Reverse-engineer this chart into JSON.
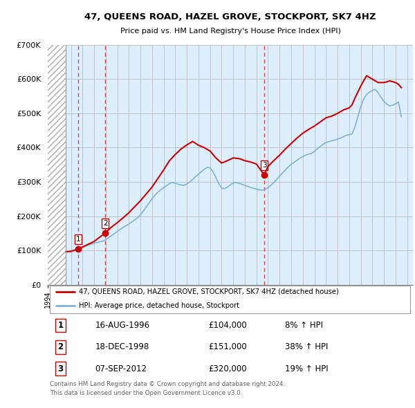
{
  "title": "47, QUEENS ROAD, HAZEL GROVE, STOCKPORT, SK7 4HZ",
  "subtitle": "Price paid vs. HM Land Registry's House Price Index (HPI)",
  "ylim": [
    0,
    700000
  ],
  "yticks": [
    0,
    100000,
    200000,
    300000,
    400000,
    500000,
    600000,
    700000
  ],
  "ytick_labels": [
    "£0",
    "£100K",
    "£200K",
    "£300K",
    "£400K",
    "£500K",
    "£600K",
    "£700K"
  ],
  "xlim_start": 1994.0,
  "xlim_end": 2025.5,
  "hatch_end": 1995.58,
  "transactions": [
    {
      "year": 1996.62,
      "price": 104000,
      "label": "1"
    },
    {
      "year": 1998.96,
      "price": 151000,
      "label": "2"
    },
    {
      "year": 2012.68,
      "price": 320000,
      "label": "3"
    }
  ],
  "transaction_vlines": [
    1996.62,
    1998.96,
    2012.68
  ],
  "hpi_line_color": "#7fb3d3",
  "price_line_color": "#cc0000",
  "transaction_marker_color": "#cc0000",
  "vline_color": "#dd4444",
  "grid_color": "#bbbbbb",
  "chart_bg_color": "#ddeeff",
  "hatch_color": "#cccccc",
  "legend_label_price": "47, QUEENS ROAD, HAZEL GROVE, STOCKPORT, SK7 4HZ (detached house)",
  "legend_label_hpi": "HPI: Average price, detached house, Stockport",
  "table_rows": [
    {
      "num": "1",
      "date": "16-AUG-1996",
      "price": "£104,000",
      "hpi": "8% ↑ HPI"
    },
    {
      "num": "2",
      "date": "18-DEC-1998",
      "price": "£151,000",
      "hpi": "38% ↑ HPI"
    },
    {
      "num": "3",
      "date": "07-SEP-2012",
      "price": "£320,000",
      "hpi": "19% ↑ HPI"
    }
  ],
  "footer": "Contains HM Land Registry data © Crown copyright and database right 2024.\nThis data is licensed under the Open Government Licence v3.0.",
  "hpi_data_x": [
    1995.58,
    1995.75,
    1996.0,
    1996.25,
    1996.5,
    1996.75,
    1997.0,
    1997.25,
    1997.5,
    1997.75,
    1998.0,
    1998.25,
    1998.5,
    1998.75,
    1999.0,
    1999.25,
    1999.5,
    1999.75,
    2000.0,
    2000.25,
    2000.5,
    2000.75,
    2001.0,
    2001.25,
    2001.5,
    2001.75,
    2002.0,
    2002.25,
    2002.5,
    2002.75,
    2003.0,
    2003.25,
    2003.5,
    2003.75,
    2004.0,
    2004.25,
    2004.5,
    2004.75,
    2005.0,
    2005.25,
    2005.5,
    2005.75,
    2006.0,
    2006.25,
    2006.5,
    2006.75,
    2007.0,
    2007.25,
    2007.5,
    2007.75,
    2008.0,
    2008.25,
    2008.5,
    2008.75,
    2009.0,
    2009.25,
    2009.5,
    2009.75,
    2010.0,
    2010.25,
    2010.5,
    2010.75,
    2011.0,
    2011.25,
    2011.5,
    2011.75,
    2012.0,
    2012.25,
    2012.5,
    2012.75,
    2013.0,
    2013.25,
    2013.5,
    2013.75,
    2014.0,
    2014.25,
    2014.5,
    2014.75,
    2015.0,
    2015.25,
    2015.5,
    2015.75,
    2016.0,
    2016.25,
    2016.5,
    2016.75,
    2017.0,
    2017.25,
    2017.5,
    2017.75,
    2018.0,
    2018.25,
    2018.5,
    2018.75,
    2019.0,
    2019.25,
    2019.5,
    2019.75,
    2020.0,
    2020.25,
    2020.5,
    2020.75,
    2021.0,
    2021.25,
    2021.5,
    2021.75,
    2022.0,
    2022.25,
    2022.5,
    2022.75,
    2023.0,
    2023.25,
    2023.5,
    2023.75,
    2024.0,
    2024.25,
    2024.5
  ],
  "hpi_data_y": [
    96000,
    97000,
    99000,
    100000,
    101000,
    103000,
    107000,
    112000,
    115000,
    118000,
    121000,
    123000,
    125000,
    127000,
    131000,
    137000,
    143000,
    149000,
    155000,
    161000,
    167000,
    172000,
    177000,
    183000,
    189000,
    195000,
    204000,
    215000,
    227000,
    239000,
    251000,
    261000,
    270000,
    277000,
    283000,
    289000,
    295000,
    298000,
    296000,
    293000,
    291000,
    290000,
    294000,
    300000,
    307000,
    315000,
    322000,
    330000,
    337000,
    342000,
    341000,
    330000,
    313000,
    295000,
    282000,
    280000,
    285000,
    291000,
    297000,
    298000,
    296000,
    293000,
    290000,
    287000,
    284000,
    281000,
    279000,
    277000,
    276000,
    278000,
    283000,
    290000,
    298000,
    307000,
    317000,
    326000,
    335000,
    344000,
    351000,
    357000,
    363000,
    369000,
    374000,
    378000,
    381000,
    383000,
    389000,
    396000,
    403000,
    410000,
    415000,
    418000,
    420000,
    422000,
    425000,
    428000,
    432000,
    436000,
    438000,
    440000,
    460000,
    490000,
    520000,
    542000,
    555000,
    562000,
    567000,
    570000,
    560000,
    547000,
    535000,
    527000,
    522000,
    524000,
    528000,
    533000,
    490000
  ],
  "price_data_x": [
    1995.58,
    1996.0,
    1996.62,
    1997.0,
    1997.5,
    1998.0,
    1998.96,
    1999.5,
    2000.0,
    2000.5,
    2001.0,
    2002.0,
    2003.0,
    2003.5,
    2004.0,
    2004.5,
    2005.0,
    2005.5,
    2006.0,
    2006.5,
    2007.0,
    2007.5,
    2008.0,
    2008.5,
    2009.0,
    2009.5,
    2010.0,
    2010.5,
    2011.0,
    2011.5,
    2012.0,
    2012.68,
    2013.0,
    2013.5,
    2014.0,
    2014.5,
    2015.0,
    2015.5,
    2016.0,
    2016.5,
    2017.0,
    2017.5,
    2018.0,
    2018.5,
    2019.0,
    2019.5,
    2020.0,
    2020.25,
    2020.5,
    2020.75,
    2021.0,
    2021.25,
    2021.5,
    2022.0,
    2022.25,
    2022.5,
    2023.0,
    2023.25,
    2023.5,
    2024.0,
    2024.25,
    2024.5
  ],
  "price_data_y": [
    96000,
    97000,
    104000,
    110000,
    118000,
    126000,
    151000,
    168000,
    181000,
    195000,
    210000,
    245000,
    285000,
    310000,
    335000,
    362000,
    380000,
    396000,
    408000,
    418000,
    407000,
    400000,
    390000,
    370000,
    355000,
    362000,
    370000,
    368000,
    362000,
    358000,
    352000,
    320000,
    345000,
    362000,
    378000,
    396000,
    412000,
    428000,
    442000,
    453000,
    463000,
    475000,
    487000,
    492000,
    500000,
    510000,
    516000,
    525000,
    545000,
    562000,
    580000,
    595000,
    610000,
    600000,
    595000,
    590000,
    590000,
    592000,
    595000,
    590000,
    585000,
    575000
  ]
}
